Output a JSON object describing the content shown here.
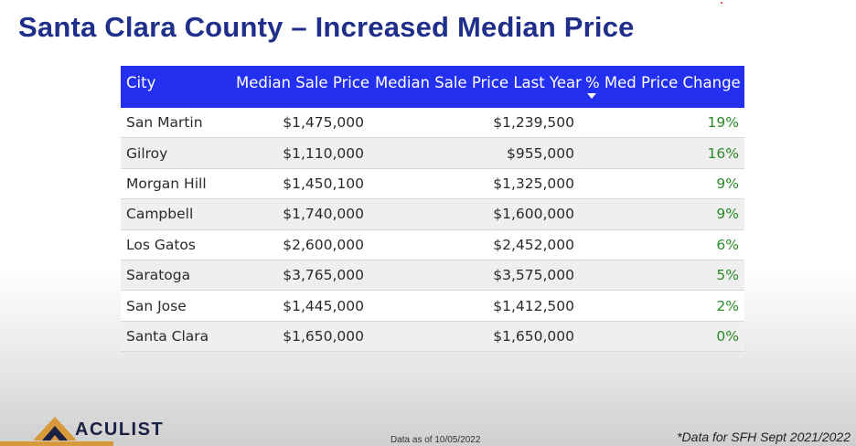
{
  "title": "Santa Clara County – Increased Median Price",
  "table": {
    "headers": [
      "City",
      "Median Sale Price",
      "Median Sale Price Last Year",
      "% Med Price Change"
    ],
    "rows": [
      [
        "San Martin",
        "$1,475,000",
        "$1,239,500",
        "19%"
      ],
      [
        "Gilroy",
        "$1,110,000",
        "$955,000",
        "16%"
      ],
      [
        "Morgan Hill",
        "$1,450,100",
        "$1,325,000",
        "9%"
      ],
      [
        "Campbell",
        "$1,740,000",
        "$1,600,000",
        "9%"
      ],
      [
        "Los Gatos",
        "$2,600,000",
        "$2,452,000",
        "6%"
      ],
      [
        "Saratoga",
        "$3,765,000",
        "$3,575,000",
        "5%"
      ],
      [
        "San Jose",
        "$1,445,000",
        "$1,412,500",
        "2%"
      ],
      [
        "Santa Clara",
        "$1,650,000",
        "$1,650,000",
        "0%"
      ]
    ]
  },
  "logo": {
    "text": "ACULIST"
  },
  "footer": {
    "data_as_of": "Data as of 10/05/2022",
    "note": "*Data for SFH Sept 2021/2022"
  },
  "colors": {
    "title": "#1f2f8a",
    "header_bg": "#2430f0",
    "positive": "#2a8a2a",
    "logo_accent": "#d79a3a"
  }
}
